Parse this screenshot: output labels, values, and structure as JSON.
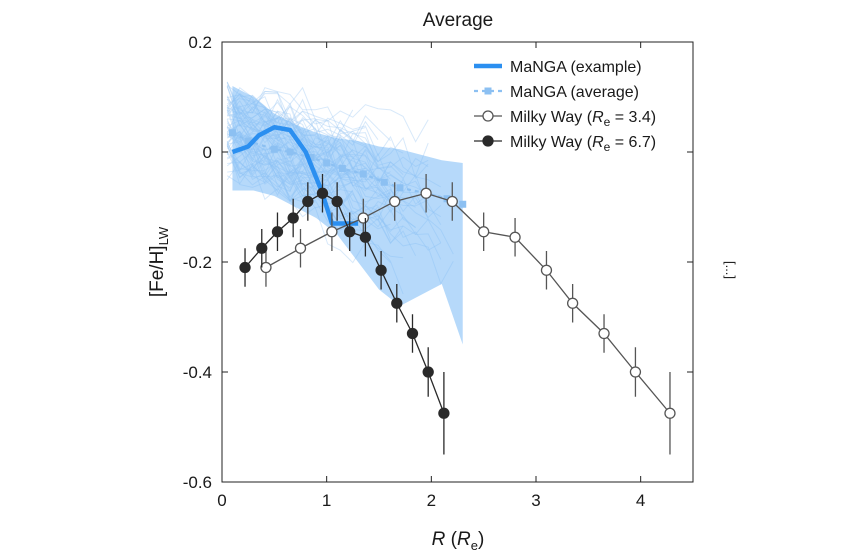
{
  "chart_data": {
    "type": "line",
    "title": "Average",
    "xlabel": {
      "main": "R",
      "open": " (",
      "sym": "R",
      "sub": "e",
      "close": ")"
    },
    "ylabel": {
      "main": "[Fe/H]",
      "sub": "LW"
    },
    "xlim": [
      0,
      4.5
    ],
    "ylim": [
      -0.6,
      0.2
    ],
    "xticks": [
      0,
      1,
      2,
      3,
      4
    ],
    "xtick_labels": [
      "0",
      "1",
      "2",
      "3",
      "4"
    ],
    "yticks": [
      0.2,
      0,
      -0.2,
      -0.4,
      -0.6
    ],
    "ytick_labels": [
      "0.2",
      "0",
      "-0.2",
      "-0.4",
      "-0.6"
    ],
    "grid": false,
    "legend_position": "top-right",
    "colors": {
      "manga_line": "#2b8ff0",
      "manga_band": "#7ab9f5",
      "manga_faint": "#a9cff5",
      "manga_avg": "#8cc0f2",
      "mw_line": "#555555",
      "mw_filled": "#2a2a2a"
    },
    "legend": [
      {
        "key": "manga_example",
        "label": "MaNGA (example)"
      },
      {
        "key": "manga_average",
        "label": "MaNGA (average)"
      },
      {
        "key": "mw_34",
        "label_main": "Milky Way (",
        "label_sym": "R",
        "label_sub": "e",
        "label_rest": " = 3.4)"
      },
      {
        "key": "mw_67",
        "label_main": "Milky Way (",
        "label_sym": "R",
        "label_sub": "e",
        "label_rest": " = 6.7)"
      }
    ],
    "series": [
      {
        "name": "MaNGA (example)",
        "style": "thick-line",
        "x": [
          0.1,
          0.25,
          0.35,
          0.5,
          0.65,
          0.8,
          0.95,
          1.05,
          1.2,
          1.3
        ],
        "y": [
          0.0,
          0.01,
          0.03,
          0.045,
          0.04,
          0.0,
          -0.07,
          -0.13,
          -0.13,
          -0.13
        ]
      },
      {
        "name": "MaNGA (average)",
        "style": "dashed-squares",
        "x": [
          0.1,
          0.25,
          0.5,
          0.65,
          0.85,
          1.0,
          1.15,
          1.35,
          1.55,
          1.7,
          1.95,
          2.15,
          2.3
        ],
        "y": [
          0.035,
          0.02,
          0.005,
          0.0,
          -0.01,
          -0.02,
          -0.03,
          -0.04,
          -0.055,
          -0.065,
          -0.075,
          -0.085,
          -0.095
        ]
      },
      {
        "name": "Milky Way (Re = 3.4)",
        "style": "open-circles",
        "x": [
          0.42,
          0.75,
          1.05,
          1.35,
          1.65,
          1.95,
          2.2,
          2.5,
          2.8,
          3.1,
          3.35,
          3.65,
          3.95,
          4.28
        ],
        "y": [
          -0.21,
          -0.175,
          -0.145,
          -0.12,
          -0.09,
          -0.075,
          -0.09,
          -0.145,
          -0.155,
          -0.215,
          -0.275,
          -0.33,
          -0.4,
          -0.475
        ],
        "err": [
          0.035,
          0.035,
          0.035,
          0.035,
          0.035,
          0.035,
          0.035,
          0.035,
          0.035,
          0.035,
          0.035,
          0.035,
          0.045,
          0.075
        ]
      },
      {
        "name": "Milky Way (Re = 6.7)",
        "style": "filled-circles",
        "x": [
          0.22,
          0.38,
          0.53,
          0.68,
          0.82,
          0.96,
          1.1,
          1.22,
          1.37,
          1.52,
          1.67,
          1.82,
          1.97,
          2.12
        ],
        "y": [
          -0.21,
          -0.175,
          -0.145,
          -0.12,
          -0.09,
          -0.075,
          -0.09,
          -0.145,
          -0.155,
          -0.215,
          -0.275,
          -0.33,
          -0.4,
          -0.475
        ],
        "err": [
          0.035,
          0.035,
          0.035,
          0.035,
          0.035,
          0.035,
          0.035,
          0.035,
          0.035,
          0.035,
          0.035,
          0.035,
          0.045,
          0.075
        ]
      }
    ],
    "manga_band": {
      "x": [
        0.1,
        0.3,
        0.5,
        0.7,
        0.9,
        1.1,
        1.3,
        1.5,
        1.7,
        1.9,
        2.1,
        2.3
      ],
      "upper": [
        0.12,
        0.1,
        0.07,
        0.05,
        0.035,
        0.025,
        0.02,
        0.01,
        0.005,
        -0.005,
        -0.015,
        -0.02
      ],
      "lower": [
        -0.07,
        -0.07,
        -0.08,
        -0.1,
        -0.12,
        -0.15,
        -0.2,
        -0.25,
        -0.28,
        -0.26,
        -0.24,
        -0.35
      ]
    }
  },
  "fragment": "[...]"
}
